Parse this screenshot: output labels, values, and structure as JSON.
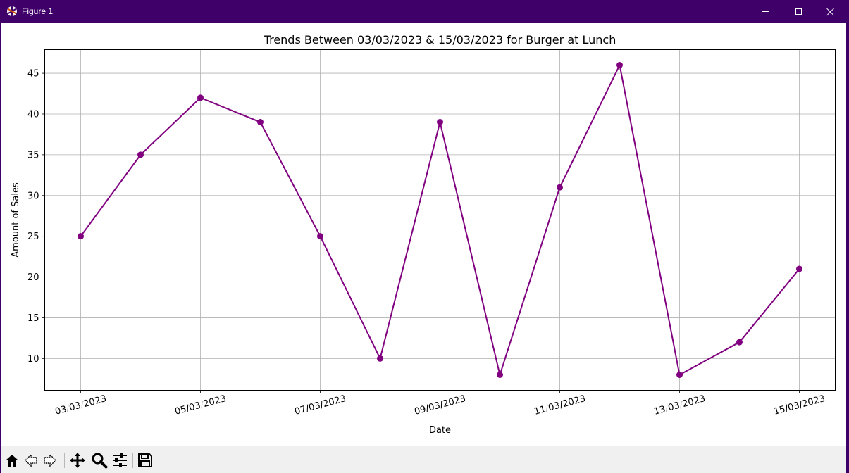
{
  "window": {
    "title": "Figure 1",
    "minimize_icon": "minimize-icon",
    "maximize_icon": "maximize-icon",
    "close_icon": "close-icon"
  },
  "toolbar": {
    "buttons": [
      {
        "name": "home-button",
        "icon": "home-icon"
      },
      {
        "name": "back-button",
        "icon": "arrow-left-icon"
      },
      {
        "name": "forward-button",
        "icon": "arrow-right-icon"
      },
      {
        "name": "pan-button",
        "icon": "move-icon"
      },
      {
        "name": "zoom-button",
        "icon": "search-icon"
      },
      {
        "name": "configure-subplots-button",
        "icon": "sliders-icon"
      },
      {
        "name": "save-button",
        "icon": "floppy-icon"
      }
    ]
  },
  "chart_data": {
    "type": "line",
    "title": "Trends Between 03/03/2023 & 15/03/2023 for Burger at Lunch",
    "xlabel": "Date",
    "ylabel": "Amount of Sales",
    "x": [
      "03/03/2023",
      "04/03/2023",
      "05/03/2023",
      "06/03/2023",
      "07/03/2023",
      "08/03/2023",
      "09/03/2023",
      "10/03/2023",
      "11/03/2023",
      "12/03/2023",
      "13/03/2023",
      "14/03/2023",
      "15/03/2023"
    ],
    "values": [
      25,
      35,
      42,
      39,
      25,
      10,
      39,
      8,
      31,
      46,
      8,
      12,
      21
    ],
    "xticks": [
      "03/03/2023",
      "05/03/2023",
      "07/03/2023",
      "09/03/2023",
      "11/03/2023",
      "13/03/2023",
      "15/03/2023"
    ],
    "yticks": [
      10,
      15,
      20,
      25,
      30,
      35,
      40,
      45
    ],
    "ylim": [
      6.1,
      47.9
    ],
    "color": "#800080",
    "marker": "circle",
    "grid": true
  }
}
